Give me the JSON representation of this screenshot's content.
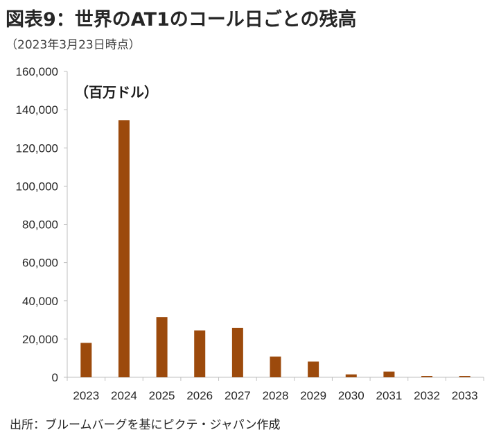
{
  "title": "図表9：世界のAT1のコール日ごとの残高",
  "subtitle": "（2023年3月23日時点）",
  "source": "出所：ブルームバーグを基にピクテ・ジャパン作成",
  "chart_data": {
    "type": "bar",
    "unit_label": "（百万ドル）",
    "categories": [
      "2023",
      "2024",
      "2025",
      "2026",
      "2027",
      "2028",
      "2029",
      "2030",
      "2031",
      "2032",
      "2033"
    ],
    "values": [
      18000,
      134500,
      31500,
      24500,
      25800,
      10800,
      8200,
      1500,
      3000,
      700,
      700
    ],
    "ylim": [
      0,
      160000
    ],
    "yticks": [
      0,
      20000,
      40000,
      60000,
      80000,
      100000,
      120000,
      140000,
      160000
    ],
    "ytick_labels": [
      "0",
      "20,000",
      "40,000",
      "60,000",
      "80,000",
      "100,000",
      "120,000",
      "140,000",
      "160,000"
    ],
    "bar_color": "#9c4a0c",
    "grid": false,
    "legend": "none"
  }
}
